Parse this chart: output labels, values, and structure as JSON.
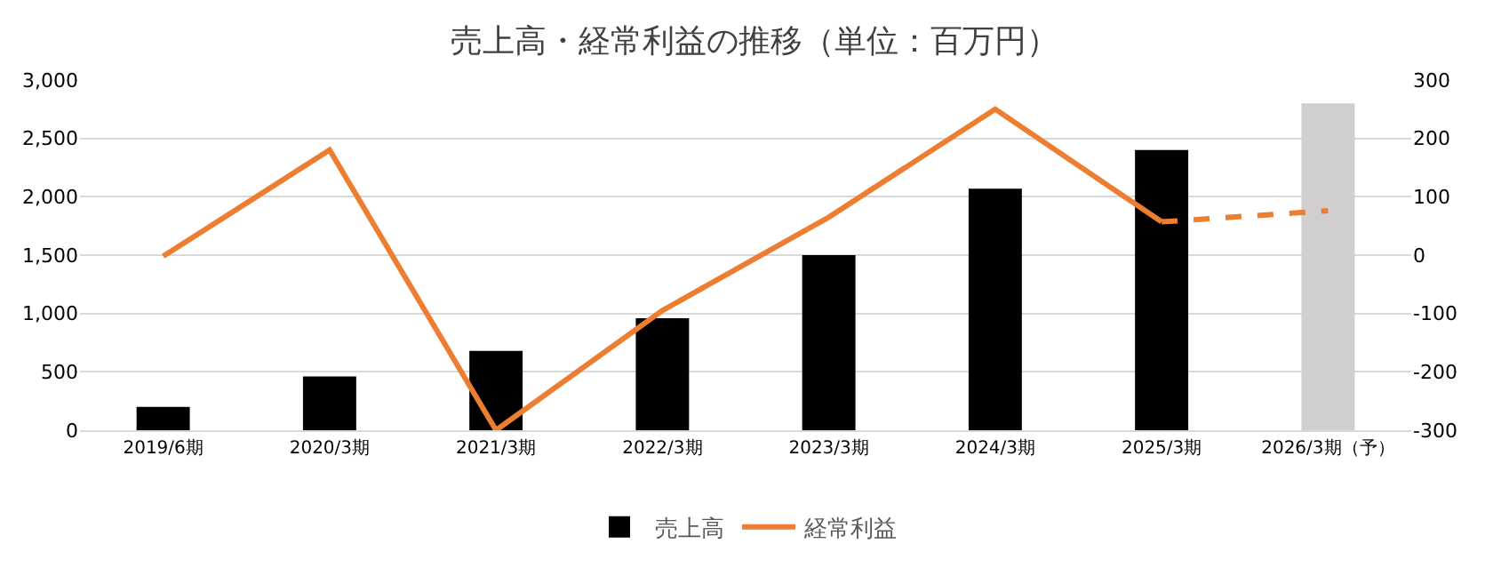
{
  "chart_data": {
    "type": "bar",
    "title": "売上高・経常利益の推移（単位：百万円）",
    "categories": [
      "2019/6期",
      "2020/3期",
      "2021/3期",
      "2022/3期",
      "2023/3期",
      "2024/3期",
      "2025/3期",
      "2026/3期（予）"
    ],
    "series": [
      {
        "name": "売上高",
        "color": "#000000",
        "colors": [
          "#000000",
          "#000000",
          "#000000",
          "#000000",
          "#000000",
          "#000000",
          "#000000",
          "#d0cece"
        ],
        "values": [
          200,
          460,
          680,
          960,
          1500,
          2070,
          2400,
          2800
        ]
      },
      {
        "name": "経常利益",
        "type": "line",
        "axis": "y2",
        "color": "#ed7d31",
        "line_style": "solid",
        "values": [
          -2,
          180,
          -300,
          -95,
          65,
          250,
          57,
          null
        ]
      },
      {
        "type": "line",
        "axis": "y2",
        "color": "#ed7d31",
        "line_style": "dashed",
        "values": [
          null,
          null,
          null,
          null,
          null,
          null,
          57,
          76
        ]
      }
    ],
    "ylim": [
      0,
      3000
    ],
    "yticks": [
      {
        "value": 0,
        "label": "0"
      },
      {
        "value": 500,
        "label": "500"
      },
      {
        "value": 1000,
        "label": "1,000"
      },
      {
        "value": 1500,
        "label": "1,500"
      },
      {
        "value": 2000,
        "label": "2,000"
      },
      {
        "value": 2500,
        "label": "2,500"
      },
      {
        "value": 3000,
        "label": "3,000"
      }
    ],
    "y2lim": [
      -300,
      300
    ],
    "y2ticks": [
      -300,
      -200,
      -100,
      0,
      100,
      200,
      300
    ],
    "grid": "y",
    "legend": "bottom",
    "marker": "none"
  }
}
